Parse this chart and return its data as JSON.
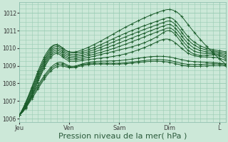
{
  "bg_color": "#cce8d8",
  "grid_color": "#99ccb3",
  "line_color": "#1a5c2a",
  "xlabel": "Pression niveau de la mer( hPa )",
  "xlabel_fontsize": 8,
  "ylim": [
    1005.8,
    1012.6
  ],
  "yticks": [
    1006,
    1007,
    1008,
    1009,
    1010,
    1011,
    1012
  ],
  "xtick_labels": [
    "Jeu",
    "Ven",
    "Sam",
    "Dim",
    "L"
  ],
  "xtick_positions": [
    0,
    24,
    48,
    72,
    96
  ],
  "total_points": 100
}
